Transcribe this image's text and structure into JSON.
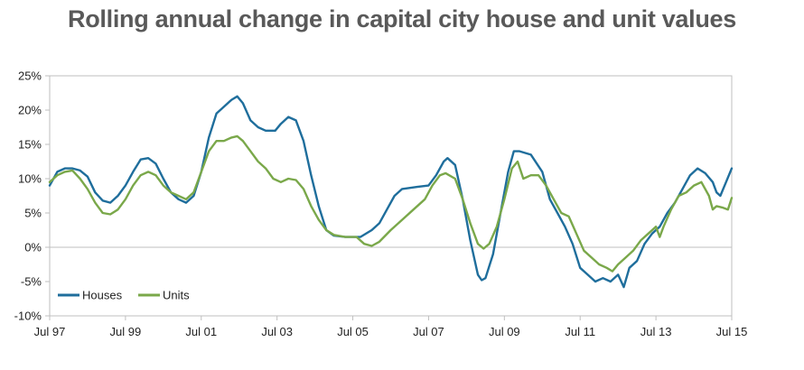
{
  "chart_data": {
    "type": "line",
    "title": "Rolling annual change in capital city house and unit values",
    "xlabel": "",
    "ylabel": "",
    "x_range": [
      1997.5,
      2015.5
    ],
    "x_ticks": [
      {
        "x": 1997.5,
        "label": "Jul 97"
      },
      {
        "x": 1999.5,
        "label": "Jul 99"
      },
      {
        "x": 2001.5,
        "label": "Jul 01"
      },
      {
        "x": 2003.5,
        "label": "Jul 03"
      },
      {
        "x": 2005.5,
        "label": "Jul 05"
      },
      {
        "x": 2007.5,
        "label": "Jul 07"
      },
      {
        "x": 2009.5,
        "label": "Jul 09"
      },
      {
        "x": 2011.5,
        "label": "Jul 11"
      },
      {
        "x": 2013.5,
        "label": "Jul 13"
      },
      {
        "x": 2015.5,
        "label": "Jul 15"
      }
    ],
    "ylim": [
      -10,
      25
    ],
    "y_ticks": [
      {
        "y": 25,
        "label": "25%"
      },
      {
        "y": 20,
        "label": "20%"
      },
      {
        "y": 15,
        "label": "15%"
      },
      {
        "y": 10,
        "label": "10%"
      },
      {
        "y": 5,
        "label": "5%"
      },
      {
        "y": 0,
        "label": "0%"
      },
      {
        "y": -5,
        "label": "-5%"
      },
      {
        "y": -10,
        "label": "-10%"
      }
    ],
    "grid": false,
    "legend_position": "bottom-left",
    "series": [
      {
        "name": "Houses",
        "color": "#1f6e9c",
        "points": [
          [
            1997.5,
            9.0
          ],
          [
            1997.7,
            11.0
          ],
          [
            1997.9,
            11.5
          ],
          [
            1998.1,
            11.5
          ],
          [
            1998.3,
            11.2
          ],
          [
            1998.5,
            10.3
          ],
          [
            1998.7,
            8.0
          ],
          [
            1998.9,
            6.8
          ],
          [
            1999.1,
            6.5
          ],
          [
            1999.3,
            7.5
          ],
          [
            1999.5,
            9.0
          ],
          [
            1999.7,
            11.0
          ],
          [
            1999.9,
            12.8
          ],
          [
            2000.1,
            13.0
          ],
          [
            2000.3,
            12.2
          ],
          [
            2000.5,
            10.0
          ],
          [
            2000.7,
            8.0
          ],
          [
            2000.9,
            7.0
          ],
          [
            2001.1,
            6.5
          ],
          [
            2001.3,
            7.5
          ],
          [
            2001.5,
            11.0
          ],
          [
            2001.7,
            16.0
          ],
          [
            2001.9,
            19.5
          ],
          [
            2002.1,
            20.5
          ],
          [
            2002.3,
            21.5
          ],
          [
            2002.45,
            22.0
          ],
          [
            2002.6,
            21.0
          ],
          [
            2002.8,
            18.5
          ],
          [
            2003.0,
            17.5
          ],
          [
            2003.2,
            17.0
          ],
          [
            2003.45,
            17.0
          ],
          [
            2003.6,
            18.0
          ],
          [
            2003.8,
            19.0
          ],
          [
            2004.0,
            18.5
          ],
          [
            2004.2,
            15.5
          ],
          [
            2004.4,
            10.5
          ],
          [
            2004.6,
            6.0
          ],
          [
            2004.8,
            2.5
          ],
          [
            2005.0,
            1.7
          ],
          [
            2005.3,
            1.5
          ],
          [
            2005.7,
            1.5
          ],
          [
            2006.0,
            2.5
          ],
          [
            2006.2,
            3.5
          ],
          [
            2006.4,
            5.5
          ],
          [
            2006.6,
            7.5
          ],
          [
            2006.8,
            8.5
          ],
          [
            2007.2,
            8.8
          ],
          [
            2007.5,
            9.0
          ],
          [
            2007.7,
            10.5
          ],
          [
            2007.9,
            12.5
          ],
          [
            2008.0,
            13.0
          ],
          [
            2008.2,
            12.0
          ],
          [
            2008.4,
            7.0
          ],
          [
            2008.6,
            1.0
          ],
          [
            2008.8,
            -4.0
          ],
          [
            2008.9,
            -4.8
          ],
          [
            2009.0,
            -4.5
          ],
          [
            2009.2,
            -1.0
          ],
          [
            2009.4,
            5.0
          ],
          [
            2009.6,
            11.0
          ],
          [
            2009.75,
            14.0
          ],
          [
            2009.9,
            14.0
          ],
          [
            2010.2,
            13.5
          ],
          [
            2010.5,
            11.0
          ],
          [
            2010.7,
            7.0
          ],
          [
            2010.9,
            5.0
          ],
          [
            2011.1,
            3.0
          ],
          [
            2011.3,
            0.5
          ],
          [
            2011.5,
            -3.0
          ],
          [
            2011.7,
            -4.0
          ],
          [
            2011.9,
            -5.0
          ],
          [
            2012.1,
            -4.5
          ],
          [
            2012.3,
            -5.0
          ],
          [
            2012.5,
            -4.0
          ],
          [
            2012.65,
            -5.8
          ],
          [
            2012.8,
            -3.0
          ],
          [
            2013.0,
            -2.0
          ],
          [
            2013.2,
            0.5
          ],
          [
            2013.4,
            2.0
          ],
          [
            2013.6,
            3.0
          ],
          [
            2013.8,
            5.0
          ],
          [
            2014.0,
            6.5
          ],
          [
            2014.2,
            8.5
          ],
          [
            2014.4,
            10.5
          ],
          [
            2014.6,
            11.5
          ],
          [
            2014.8,
            10.8
          ],
          [
            2015.0,
            9.5
          ],
          [
            2015.1,
            8.0
          ],
          [
            2015.2,
            7.5
          ],
          [
            2015.35,
            9.5
          ],
          [
            2015.5,
            11.5
          ]
        ]
      },
      {
        "name": "Units",
        "color": "#7aa84a",
        "points": [
          [
            1997.5,
            9.5
          ],
          [
            1997.7,
            10.5
          ],
          [
            1997.9,
            11.0
          ],
          [
            1998.1,
            11.2
          ],
          [
            1998.3,
            10.0
          ],
          [
            1998.5,
            8.5
          ],
          [
            1998.7,
            6.5
          ],
          [
            1998.9,
            5.0
          ],
          [
            1999.1,
            4.8
          ],
          [
            1999.3,
            5.5
          ],
          [
            1999.5,
            7.0
          ],
          [
            1999.7,
            9.0
          ],
          [
            1999.9,
            10.5
          ],
          [
            2000.1,
            11.0
          ],
          [
            2000.3,
            10.5
          ],
          [
            2000.5,
            9.0
          ],
          [
            2000.7,
            8.0
          ],
          [
            2000.9,
            7.5
          ],
          [
            2001.1,
            7.0
          ],
          [
            2001.3,
            8.0
          ],
          [
            2001.5,
            11.0
          ],
          [
            2001.7,
            14.0
          ],
          [
            2001.9,
            15.5
          ],
          [
            2002.1,
            15.5
          ],
          [
            2002.3,
            16.0
          ],
          [
            2002.45,
            16.2
          ],
          [
            2002.6,
            15.5
          ],
          [
            2002.8,
            14.0
          ],
          [
            2003.0,
            12.5
          ],
          [
            2003.2,
            11.5
          ],
          [
            2003.4,
            10.0
          ],
          [
            2003.6,
            9.5
          ],
          [
            2003.8,
            10.0
          ],
          [
            2004.0,
            9.8
          ],
          [
            2004.2,
            8.5
          ],
          [
            2004.4,
            6.0
          ],
          [
            2004.6,
            4.0
          ],
          [
            2004.8,
            2.5
          ],
          [
            2005.0,
            1.8
          ],
          [
            2005.3,
            1.5
          ],
          [
            2005.6,
            1.5
          ],
          [
            2005.8,
            0.5
          ],
          [
            2006.0,
            0.2
          ],
          [
            2006.2,
            0.8
          ],
          [
            2006.5,
            2.5
          ],
          [
            2006.8,
            4.0
          ],
          [
            2007.1,
            5.5
          ],
          [
            2007.4,
            7.0
          ],
          [
            2007.6,
            9.0
          ],
          [
            2007.8,
            10.5
          ],
          [
            2007.95,
            10.8
          ],
          [
            2008.2,
            10.0
          ],
          [
            2008.4,
            7.0
          ],
          [
            2008.6,
            3.5
          ],
          [
            2008.8,
            0.5
          ],
          [
            2008.95,
            -0.2
          ],
          [
            2009.1,
            0.5
          ],
          [
            2009.3,
            3.0
          ],
          [
            2009.5,
            7.0
          ],
          [
            2009.7,
            11.5
          ],
          [
            2009.85,
            12.5
          ],
          [
            2010.0,
            10.0
          ],
          [
            2010.2,
            10.5
          ],
          [
            2010.4,
            10.5
          ],
          [
            2010.6,
            9.0
          ],
          [
            2010.8,
            7.0
          ],
          [
            2011.0,
            5.0
          ],
          [
            2011.2,
            4.5
          ],
          [
            2011.4,
            2.0
          ],
          [
            2011.6,
            -0.5
          ],
          [
            2011.8,
            -1.5
          ],
          [
            2012.0,
            -2.5
          ],
          [
            2012.2,
            -3.0
          ],
          [
            2012.35,
            -3.5
          ],
          [
            2012.5,
            -2.5
          ],
          [
            2012.7,
            -1.5
          ],
          [
            2012.9,
            -0.5
          ],
          [
            2013.1,
            1.0
          ],
          [
            2013.3,
            2.0
          ],
          [
            2013.5,
            3.0
          ],
          [
            2013.6,
            1.5
          ],
          [
            2013.7,
            3.0
          ],
          [
            2013.9,
            5.5
          ],
          [
            2014.1,
            7.5
          ],
          [
            2014.3,
            8.0
          ],
          [
            2014.5,
            9.0
          ],
          [
            2014.7,
            9.5
          ],
          [
            2014.9,
            7.5
          ],
          [
            2015.0,
            5.5
          ],
          [
            2015.1,
            6.0
          ],
          [
            2015.25,
            5.8
          ],
          [
            2015.4,
            5.5
          ],
          [
            2015.5,
            7.2
          ]
        ]
      }
    ]
  }
}
